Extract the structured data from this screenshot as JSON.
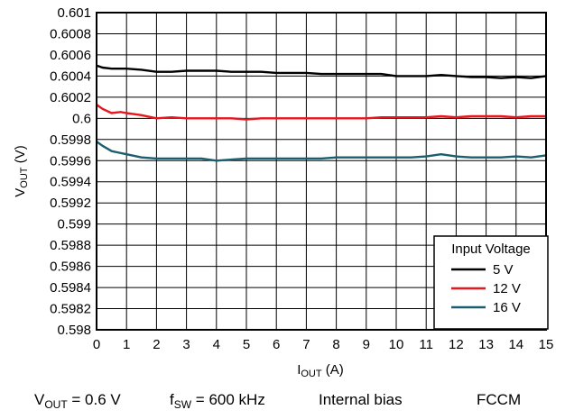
{
  "chart_data": {
    "type": "line",
    "xlabel": {
      "main": "I",
      "sub": "OUT",
      "unit": " (A)"
    },
    "ylabel": {
      "main": "V",
      "sub": "OUT",
      "unit": " (V)"
    },
    "xlim": [
      0,
      15
    ],
    "ylim": [
      0.598,
      0.601
    ],
    "x_ticks": [
      0,
      1,
      2,
      3,
      4,
      5,
      6,
      7,
      8,
      9,
      10,
      11,
      12,
      13,
      14,
      15
    ],
    "y_ticks": [
      0.598,
      0.5982,
      0.5984,
      0.5986,
      0.5988,
      0.599,
      0.5992,
      0.5994,
      0.5996,
      0.5998,
      0.6,
      0.6002,
      0.6004,
      0.6006,
      0.6008,
      0.601
    ],
    "y_tick_labels": [
      "0.598",
      "0.5982",
      "0.5984",
      "0.5986",
      "0.5988",
      "0.599",
      "0.5992",
      "0.5994",
      "0.5996",
      "0.5998",
      "0.6",
      "0.6002",
      "0.6004",
      "0.6006",
      "0.6008",
      "0.601"
    ],
    "grid": true,
    "legend": {
      "title": "Input Voltage",
      "placement": "bottom-right",
      "entries": [
        "5 V",
        "12 V",
        "16 V"
      ]
    },
    "series": [
      {
        "name": "5 V",
        "color": "#000000",
        "x": [
          0,
          0.2,
          0.5,
          1,
          1.5,
          2,
          2.5,
          3,
          3.5,
          4,
          4.5,
          5,
          5.5,
          6,
          6.5,
          7,
          7.5,
          8,
          8.5,
          9,
          9.5,
          10,
          10.5,
          11,
          11.5,
          12,
          12.5,
          13,
          13.5,
          14,
          14.5,
          15
        ],
        "values": [
          0.6005,
          0.60048,
          0.60047,
          0.60047,
          0.60046,
          0.60044,
          0.60044,
          0.60045,
          0.60045,
          0.60045,
          0.60044,
          0.60044,
          0.60044,
          0.60043,
          0.60043,
          0.60043,
          0.60042,
          0.60042,
          0.60042,
          0.60042,
          0.60042,
          0.6004,
          0.6004,
          0.6004,
          0.60041,
          0.6004,
          0.60039,
          0.60039,
          0.60038,
          0.60039,
          0.60038,
          0.6004
        ]
      },
      {
        "name": "12 V",
        "color": "#e8161d",
        "x": [
          0,
          0.2,
          0.5,
          0.8,
          1,
          1.5,
          2,
          2.5,
          3,
          3.5,
          4,
          4.5,
          5,
          5.5,
          6,
          6.5,
          7,
          7.5,
          8,
          8.5,
          9,
          9.5,
          10,
          10.5,
          11,
          11.5,
          12,
          12.5,
          13,
          13.5,
          14,
          14.5,
          15
        ],
        "values": [
          0.60013,
          0.60009,
          0.60005,
          0.60006,
          0.60005,
          0.60003,
          0.6,
          0.60001,
          0.6,
          0.6,
          0.6,
          0.6,
          0.59999,
          0.6,
          0.6,
          0.6,
          0.6,
          0.6,
          0.6,
          0.6,
          0.6,
          0.60001,
          0.60001,
          0.60001,
          0.60001,
          0.60002,
          0.60001,
          0.60002,
          0.60002,
          0.60002,
          0.60001,
          0.60002,
          0.60002
        ]
      },
      {
        "name": "16 V",
        "color": "#1b5e6f",
        "x": [
          0,
          0.2,
          0.5,
          1,
          1.5,
          2,
          2.5,
          3,
          3.5,
          4,
          4.5,
          5,
          5.5,
          6,
          6.5,
          7,
          7.5,
          8,
          8.5,
          9,
          9.5,
          10,
          10.5,
          11,
          11.5,
          12,
          12.5,
          13,
          13.5,
          14,
          14.5,
          15
        ],
        "values": [
          0.59978,
          0.59974,
          0.59969,
          0.59966,
          0.59963,
          0.59962,
          0.59962,
          0.59962,
          0.59962,
          0.5996,
          0.59961,
          0.59962,
          0.59962,
          0.59962,
          0.59962,
          0.59962,
          0.59962,
          0.59963,
          0.59963,
          0.59963,
          0.59963,
          0.59963,
          0.59963,
          0.59964,
          0.59966,
          0.59964,
          0.59963,
          0.59963,
          0.59963,
          0.59964,
          0.59963,
          0.59965
        ]
      }
    ]
  },
  "caption": [
    {
      "main": "V",
      "sub": "OUT",
      "rest": " = 0.6 V"
    },
    {
      "main": "f",
      "sub": "SW",
      "rest": " = 600 kHz"
    },
    {
      "main": "Internal bias",
      "sub": "",
      "rest": ""
    },
    {
      "main": "FCCM",
      "sub": "",
      "rest": ""
    }
  ]
}
